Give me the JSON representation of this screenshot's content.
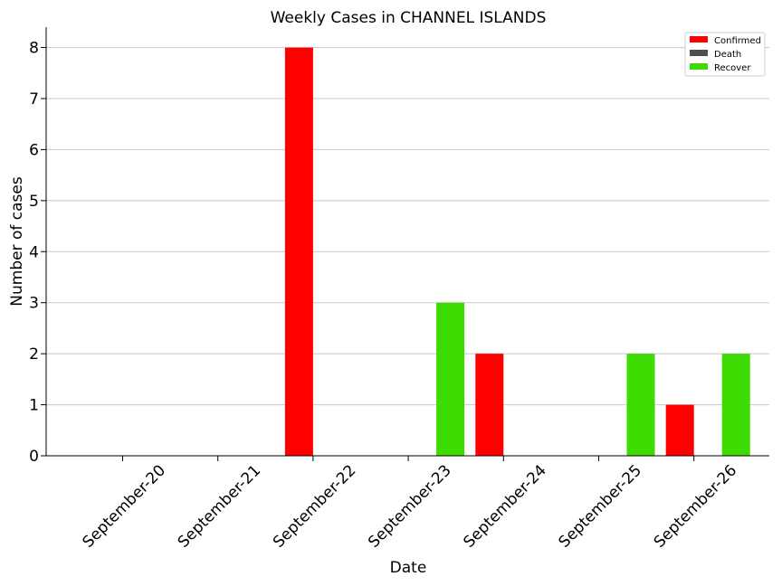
{
  "chart_data": {
    "type": "bar",
    "title": "Weekly Cases in CHANNEL ISLANDS",
    "xlabel": "Date",
    "ylabel": "Number of cases",
    "categories": [
      "September-20",
      "September-21",
      "September-22",
      "September-23",
      "September-24",
      "September-25",
      "September-26"
    ],
    "series": [
      {
        "name": "Confirmed",
        "color": "#ff0000",
        "values": [
          0,
          0,
          8,
          0,
          2,
          0,
          1
        ]
      },
      {
        "name": "Death",
        "color": "#4d4d4d",
        "values": [
          0,
          0,
          0,
          0,
          0,
          0,
          0
        ]
      },
      {
        "name": "Recover",
        "color": "#3ddb00",
        "values": [
          0,
          0,
          0,
          3,
          0,
          2,
          2
        ]
      }
    ],
    "ylim": [
      0,
      8.4
    ],
    "yticks": [
      0,
      1,
      2,
      3,
      4,
      5,
      6,
      7,
      8
    ],
    "grid": "horizontal",
    "legend_position": "top-right"
  }
}
